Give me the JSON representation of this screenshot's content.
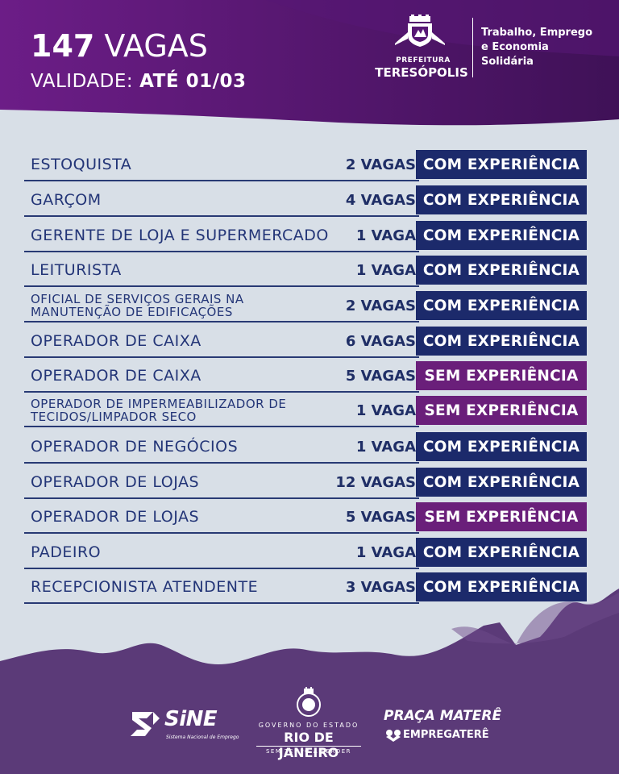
{
  "header": {
    "count": "147",
    "count_label": "VAGAS",
    "validity_label": "VALIDADE:",
    "validity_date": "ATÉ 01/03"
  },
  "prefeitura": {
    "small_label": "PREFEITURA",
    "city": "TERESÓPOLIS"
  },
  "secretary": {
    "line1": "Trabalho, Emprego",
    "line2": "e Economia",
    "line3": "Solidária"
  },
  "jobs": [
    {
      "title": "ESTOQUISTA",
      "vacancies": "2 VAGAS",
      "experience": "COM EXPERIÊNCIA",
      "type": "com"
    },
    {
      "title": "GARÇOM",
      "vacancies": "4 VAGAS",
      "experience": "COM EXPERIÊNCIA",
      "type": "com"
    },
    {
      "title": "GERENTE DE LOJA E SUPERMERCADO",
      "vacancies": "1 VAGA",
      "experience": "COM EXPERIÊNCIA",
      "type": "com"
    },
    {
      "title": "LEITURISTA",
      "vacancies": "1 VAGA",
      "experience": "COM EXPERIÊNCIA",
      "type": "com"
    },
    {
      "title": "OFICIAL DE SERVIÇOS GERAIS NA MANUTENÇÃO DE EDIFICAÇÕES",
      "vacancies": "2 VAGAS",
      "experience": "COM EXPERIÊNCIA",
      "type": "com"
    },
    {
      "title": "OPERADOR DE CAIXA",
      "vacancies": "6 VAGAS",
      "experience": "COM EXPERIÊNCIA",
      "type": "com"
    },
    {
      "title": "OPERADOR DE CAIXA",
      "vacancies": "5 VAGAS",
      "experience": "SEM EXPERIÊNCIA",
      "type": "sem"
    },
    {
      "title": "OPERADOR DE IMPERMEABILIZADOR DE TECIDOS/LIMPADOR SECO",
      "vacancies": "1 VAGA",
      "experience": "SEM EXPERIÊNCIA",
      "type": "sem"
    },
    {
      "title": "OPERADOR DE NEGÓCIOS",
      "vacancies": "1 VAGA",
      "experience": "COM EXPERIÊNCIA",
      "type": "com"
    },
    {
      "title": "OPERADOR DE LOJAS",
      "vacancies": "12 VAGAS",
      "experience": "COM EXPERIÊNCIA",
      "type": "com"
    },
    {
      "title": "OPERADOR DE LOJAS",
      "vacancies": "5 VAGAS",
      "experience": "SEM EXPERIÊNCIA",
      "type": "sem"
    },
    {
      "title": "PADEIRO",
      "vacancies": "1 VAGA",
      "experience": "COM EXPERIÊNCIA",
      "type": "com"
    },
    {
      "title": "RECEPCIONISTA ATENDENTE",
      "vacancies": "3 VAGAS",
      "experience": "COM EXPERIÊNCIA",
      "type": "com"
    }
  ],
  "footer": {
    "sine": {
      "word": "SiNE",
      "sub": "Sistema Nacional de Emprego"
    },
    "gov": {
      "line1": "GOVERNO DO ESTADO",
      "line2": "RIO DE JANEIRO",
      "line3": "SEM TEMPO A PERDER"
    },
    "praca": {
      "line1": "PRAÇA MATERÊ",
      "line2": "EMPREGATERÊ"
    }
  },
  "colors": {
    "purple_dark": "#4a1565",
    "purple": "#6b1f86",
    "navy": "#1c2a6b",
    "sem_badge": "#6a1f7a",
    "background": "#d8dfe7",
    "mountains": "#5b3a78"
  }
}
